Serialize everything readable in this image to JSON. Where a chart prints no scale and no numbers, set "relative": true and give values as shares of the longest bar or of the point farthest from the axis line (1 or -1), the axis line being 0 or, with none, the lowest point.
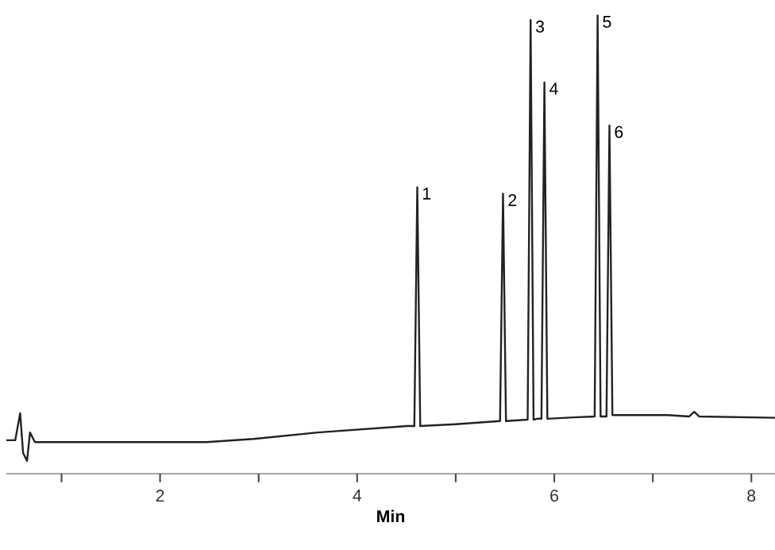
{
  "chart_data": {
    "type": "line",
    "xlabel": "Min",
    "relative": true,
    "color": "#222222",
    "marker": "none",
    "line_style": "solid",
    "xlim": [
      0.44,
      8.24
    ],
    "xticks": [
      {
        "value": 1,
        "label": null
      },
      2,
      {
        "value": 3,
        "label": null
      },
      4,
      {
        "value": 5,
        "label": null
      },
      6,
      {
        "value": 7,
        "label": null
      },
      8
    ],
    "x": [
      0.44,
      0.53,
      0.58,
      0.61,
      0.65,
      0.68,
      0.73,
      1.02,
      2.47,
      2.95,
      3.6,
      4.5,
      4.58,
      4.61,
      4.64,
      5.0,
      5.45,
      5.48,
      5.51,
      5.73,
      5.76,
      5.79,
      5.83,
      5.87,
      5.9,
      5.93,
      6.2,
      6.41,
      6.44,
      6.47,
      6.5,
      6.53,
      6.56,
      6.59,
      6.62,
      7.15,
      7.37,
      7.42,
      7.47,
      8.24
    ],
    "values": [
      0.073,
      0.073,
      0.132,
      0.045,
      0.028,
      0.09,
      0.069,
      0.069,
      0.069,
      0.076,
      0.09,
      0.104,
      0.104,
      0.625,
      0.104,
      0.108,
      0.115,
      0.611,
      0.115,
      0.118,
      0.99,
      0.118,
      0.12,
      0.12,
      0.854,
      0.12,
      0.123,
      0.125,
      1.0,
      0.125,
      0.125,
      0.125,
      0.76,
      0.128,
      0.128,
      0.128,
      0.125,
      0.135,
      0.125,
      0.122
    ],
    "annotations": [
      {
        "text": "1",
        "x": 4.61,
        "y": 0.625
      },
      {
        "text": "2",
        "x": 5.48,
        "y": 0.611
      },
      {
        "text": "3",
        "x": 5.76,
        "y": 0.99
      },
      {
        "text": "4",
        "x": 5.9,
        "y": 0.854
      },
      {
        "text": "5",
        "x": 6.44,
        "y": 1.0
      },
      {
        "text": "6",
        "x": 6.56,
        "y": 0.76
      }
    ]
  }
}
